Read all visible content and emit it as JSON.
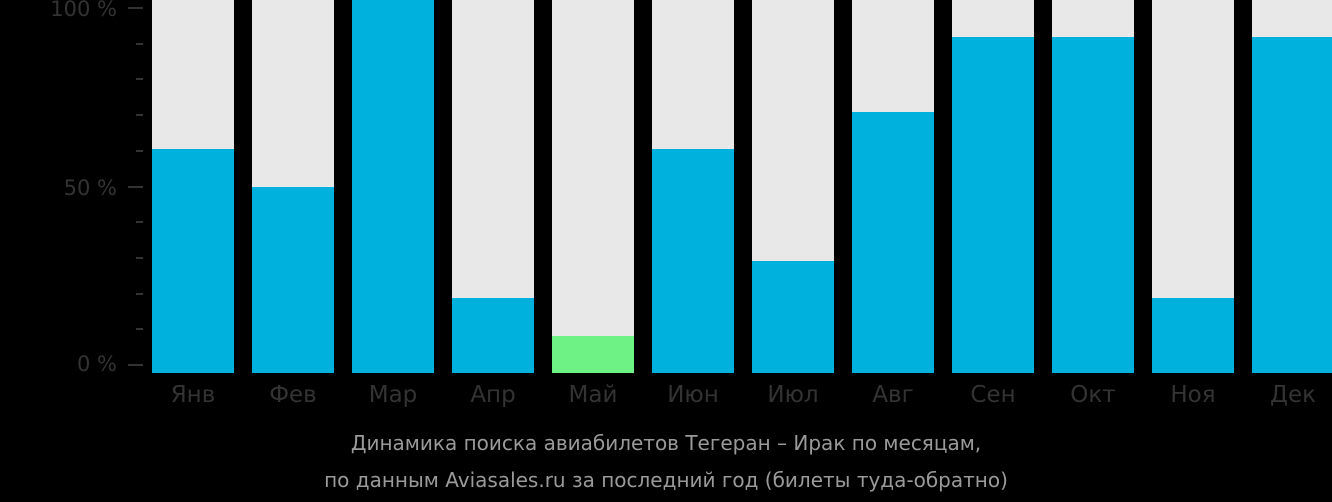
{
  "chart_data": {
    "type": "bar",
    "title": "Динамика поиска авиабилетов Тегеран – Ирак по месяцам,",
    "subtitle": "по данным Aviasales.ru за последний год (билеты туда-обратно)",
    "categories": [
      "Янв",
      "Фев",
      "Мар",
      "Апр",
      "Май",
      "Июн",
      "Июл",
      "Авг",
      "Сен",
      "Окт",
      "Ноя",
      "Дек"
    ],
    "values": [
      60,
      50,
      100,
      20,
      10,
      60,
      30,
      70,
      90,
      90,
      20,
      90
    ],
    "highlight_index": 4,
    "xlabel": "",
    "ylabel": "",
    "ylim": [
      0,
      100
    ],
    "yticks": [
      "0 %",
      "50 %",
      "100 %"
    ],
    "grid": false,
    "legend": null,
    "colors": {
      "bar": "#00b0dd",
      "highlight": "#6ef286",
      "background_bar": "#e8e8e8",
      "background": "#000000",
      "text": "#333333",
      "caption": "#9a9a9a"
    }
  },
  "axis": {
    "y_top": "100 %",
    "y_mid": "50 %",
    "y_bottom": "0 %"
  },
  "caption": {
    "line1": "Динамика поиска авиабилетов Тегеран – Ирак по месяцам,",
    "line2": "по данным Aviasales.ru за последний год (билеты туда-обратно)"
  }
}
